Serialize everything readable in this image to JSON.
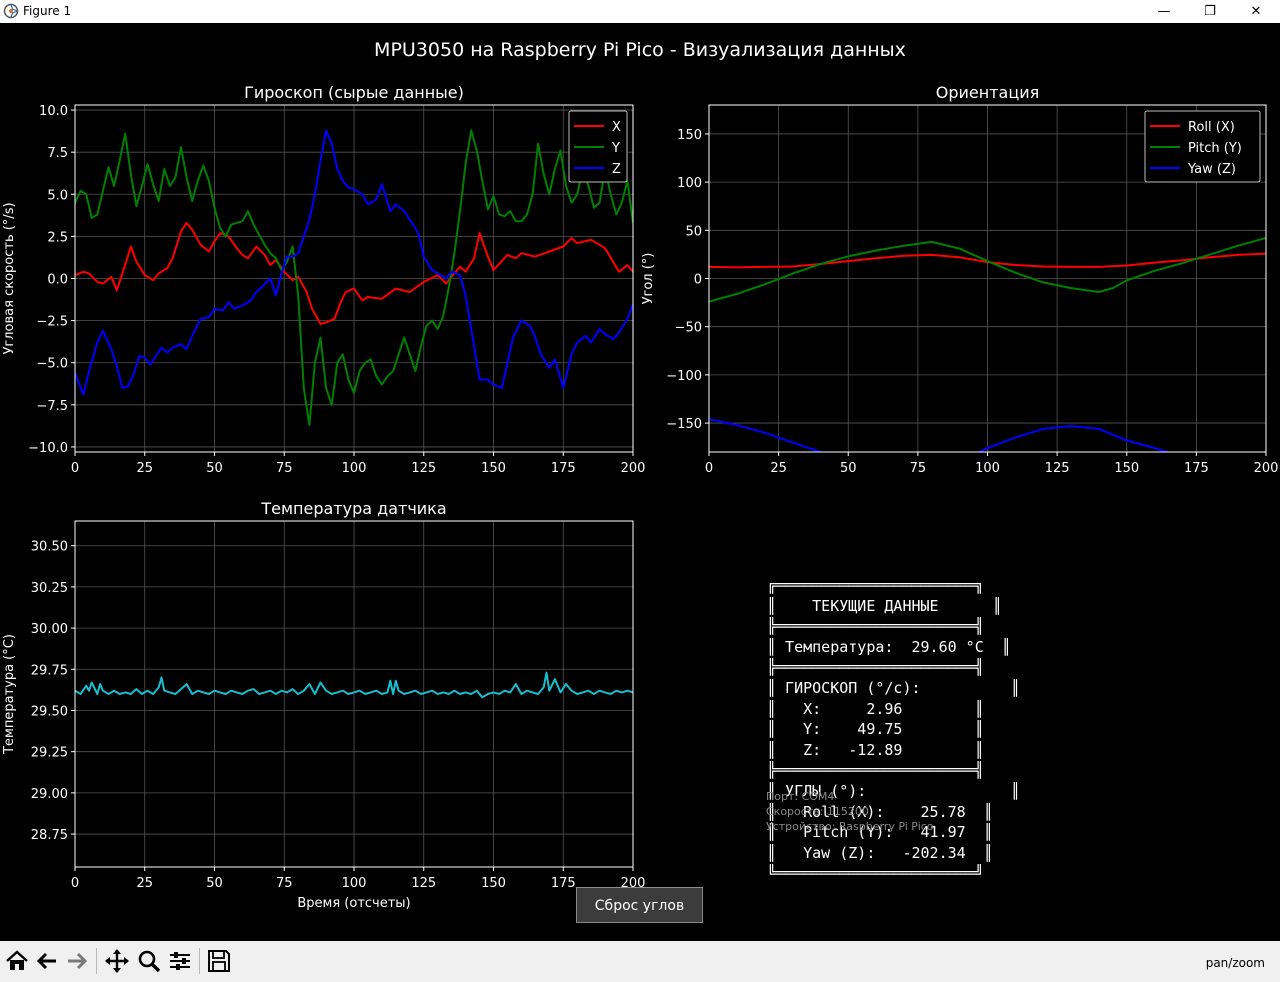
{
  "window": {
    "title": "Figure 1",
    "minimize_glyph": "—",
    "maximize_glyph": "❐",
    "close_glyph": "✕"
  },
  "figure": {
    "suptitle": "MPU3050 на Raspberry Pi Pico - Визуализация данных",
    "background": "#000000"
  },
  "chart_data": [
    {
      "id": "gyro",
      "type": "line",
      "title": "Гироскоп (сырые данные)",
      "xlabel": "",
      "ylabel": "Угловая скорость (°/s)",
      "xlim": [
        0,
        200
      ],
      "ylim": [
        -10.3,
        10.3
      ],
      "xticks": [
        0,
        25,
        50,
        75,
        100,
        125,
        150,
        175,
        200
      ],
      "yticks": [
        -10.0,
        -7.5,
        -5.0,
        -2.5,
        0.0,
        2.5,
        5.0,
        7.5,
        10.0
      ],
      "ytick_labels": [
        "−10.0",
        "−7.5",
        "−5.0",
        "−2.5",
        "0.0",
        "2.5",
        "5.0",
        "7.5",
        "10.0"
      ],
      "grid": true,
      "legend": "top-right",
      "series": [
        {
          "name": "X",
          "color": "#ff0000",
          "x": [
            0,
            3,
            5,
            8,
            10,
            13,
            15,
            18,
            20,
            22,
            25,
            28,
            30,
            33,
            35,
            38,
            40,
            42,
            45,
            48,
            50,
            52,
            55,
            58,
            60,
            62,
            65,
            68,
            70,
            72,
            75,
            78,
            80,
            83,
            85,
            88,
            90,
            93,
            95,
            97,
            100,
            103,
            105,
            110,
            115,
            120,
            125,
            130,
            133,
            135,
            138,
            140,
            143,
            145,
            148,
            150,
            155,
            158,
            160,
            165,
            170,
            175,
            178,
            180,
            185,
            190,
            195,
            198,
            200
          ],
          "y": [
            0.2,
            0.4,
            0.3,
            -0.2,
            -0.3,
            0.1,
            -0.7,
            0.8,
            1.9,
            1.0,
            0.2,
            -0.1,
            0.3,
            0.6,
            1.2,
            2.8,
            3.3,
            2.9,
            2.0,
            1.6,
            2.2,
            2.7,
            2.5,
            1.8,
            1.4,
            1.2,
            1.9,
            1.4,
            0.8,
            1.1,
            0.4,
            -0.1,
            0.1,
            -0.8,
            -1.8,
            -2.7,
            -2.6,
            -2.4,
            -1.5,
            -0.8,
            -0.6,
            -1.3,
            -1.1,
            -1.2,
            -0.6,
            -0.8,
            -0.2,
            0.2,
            -0.3,
            0.1,
            0.7,
            0.4,
            1.2,
            2.7,
            1.3,
            0.5,
            1.4,
            1.2,
            1.5,
            1.3,
            1.6,
            1.9,
            2.4,
            2.1,
            2.3,
            1.8,
            0.4,
            0.8,
            0.4
          ]
        },
        {
          "name": "Y",
          "color": "#008000",
          "x": [
            0,
            2,
            4,
            6,
            8,
            10,
            12,
            14,
            16,
            18,
            20,
            22,
            24,
            26,
            28,
            30,
            32,
            34,
            36,
            38,
            40,
            42,
            44,
            46,
            48,
            50,
            52,
            54,
            56,
            58,
            60,
            62,
            64,
            66,
            68,
            70,
            72,
            74,
            76,
            78,
            80,
            82,
            84,
            86,
            88,
            90,
            92,
            94,
            96,
            98,
            100,
            102,
            104,
            106,
            108,
            110,
            112,
            114,
            116,
            118,
            120,
            122,
            124,
            126,
            128,
            130,
            132,
            134,
            136,
            138,
            140,
            142,
            144,
            146,
            148,
            150,
            152,
            154,
            156,
            158,
            160,
            162,
            164,
            166,
            168,
            170,
            172,
            174,
            176,
            178,
            180,
            182,
            184,
            186,
            188,
            190,
            192,
            194,
            196,
            198,
            200
          ],
          "y": [
            4.5,
            5.2,
            5.0,
            3.6,
            3.8,
            5.2,
            6.6,
            5.5,
            7.0,
            8.6,
            6.2,
            4.3,
            5.5,
            6.8,
            5.6,
            4.6,
            6.5,
            5.5,
            6.0,
            7.8,
            6.0,
            4.6,
            5.8,
            6.7,
            5.8,
            4.2,
            3.0,
            2.5,
            3.2,
            3.3,
            3.4,
            4.0,
            3.2,
            2.6,
            2.0,
            1.5,
            1.2,
            0.5,
            1.0,
            1.9,
            -1.0,
            -6.5,
            -8.7,
            -5.0,
            -3.5,
            -6.5,
            -7.5,
            -5.0,
            -4.5,
            -6.0,
            -6.8,
            -5.5,
            -5.0,
            -4.8,
            -5.8,
            -6.3,
            -5.8,
            -5.5,
            -4.5,
            -3.5,
            -4.5,
            -5.5,
            -4.0,
            -2.8,
            -2.5,
            -3.0,
            -2.2,
            -0.5,
            1.5,
            4.0,
            6.8,
            8.8,
            7.6,
            5.8,
            4.1,
            4.9,
            3.8,
            3.7,
            4.0,
            3.4,
            3.4,
            3.8,
            5.0,
            8.0,
            6.2,
            5.0,
            6.5,
            7.6,
            5.5,
            4.5,
            5.0,
            6.5,
            5.5,
            4.2,
            4.5,
            6.5,
            5.0,
            3.8,
            4.5,
            5.8,
            3.3
          ]
        },
        {
          "name": "Z",
          "color": "#0000ff",
          "x": [
            0,
            3,
            5,
            8,
            10,
            13,
            15,
            17,
            19,
            21,
            23,
            25,
            27,
            29,
            31,
            33,
            35,
            38,
            40,
            42,
            45,
            48,
            50,
            53,
            55,
            57,
            60,
            63,
            65,
            67,
            70,
            72,
            74,
            76,
            78,
            80,
            82,
            84,
            86,
            88,
            90,
            92,
            94,
            96,
            98,
            100,
            103,
            105,
            108,
            110,
            113,
            115,
            118,
            120,
            123,
            125,
            128,
            130,
            133,
            135,
            138,
            140,
            143,
            145,
            148,
            150,
            153,
            155,
            157,
            160,
            163,
            165,
            167,
            170,
            172,
            175,
            178,
            180,
            183,
            185,
            188,
            190,
            193,
            195,
            198,
            200
          ],
          "y": [
            -5.6,
            -6.9,
            -5.5,
            -3.8,
            -3.1,
            -4.2,
            -5.2,
            -6.5,
            -6.4,
            -5.7,
            -4.6,
            -4.7,
            -5.1,
            -4.6,
            -4.1,
            -4.4,
            -4.1,
            -3.9,
            -4.2,
            -3.4,
            -2.4,
            -2.3,
            -1.8,
            -1.9,
            -1.4,
            -1.8,
            -1.6,
            -1.3,
            -0.8,
            -0.5,
            0.0,
            -1.0,
            0.3,
            1.3,
            1.3,
            1.5,
            2.5,
            3.5,
            5.0,
            7.0,
            8.8,
            8.0,
            6.5,
            5.8,
            5.4,
            5.3,
            5.0,
            4.4,
            4.7,
            5.6,
            4.0,
            4.4,
            4.0,
            3.5,
            2.7,
            1.3,
            0.5,
            0.3,
            0.0,
            0.4,
            0.2,
            -1.0,
            -4.0,
            -6.0,
            -6.0,
            -6.3,
            -6.5,
            -5.0,
            -3.5,
            -2.5,
            -2.8,
            -3.5,
            -4.5,
            -5.3,
            -4.8,
            -6.5,
            -4.5,
            -3.8,
            -3.4,
            -3.8,
            -3.0,
            -3.3,
            -3.6,
            -3.2,
            -2.4,
            -1.5
          ]
        }
      ]
    },
    {
      "id": "orientation",
      "type": "line",
      "title": "Ориентация",
      "xlabel": "",
      "ylabel": "Угол (°)",
      "xlim": [
        0,
        200
      ],
      "ylim": [
        -180,
        180
      ],
      "xticks": [
        0,
        25,
        50,
        75,
        100,
        125,
        150,
        175,
        200
      ],
      "yticks": [
        -150,
        -100,
        -50,
        0,
        50,
        100,
        150
      ],
      "ytick_labels": [
        "−150",
        "−100",
        "−50",
        "0",
        "50",
        "100",
        "150"
      ],
      "grid": true,
      "legend": "top-right",
      "series": [
        {
          "name": "Roll (X)",
          "color": "#ff0000",
          "x": [
            0,
            10,
            20,
            30,
            40,
            50,
            60,
            70,
            80,
            90,
            100,
            110,
            120,
            130,
            140,
            150,
            160,
            170,
            180,
            190,
            200
          ],
          "y": [
            12,
            11.5,
            12,
            12.5,
            15,
            18,
            21,
            23.5,
            24.5,
            22,
            17,
            14,
            12.5,
            12,
            12,
            13.5,
            16.5,
            19,
            22,
            24.5,
            25.8
          ]
        },
        {
          "name": "Pitch (Y)",
          "color": "#008000",
          "x": [
            0,
            10,
            20,
            30,
            40,
            50,
            60,
            70,
            80,
            90,
            100,
            110,
            120,
            130,
            140,
            145,
            150,
            160,
            170,
            180,
            190,
            200
          ],
          "y": [
            -24,
            -16,
            -6,
            5,
            15,
            23,
            29,
            34,
            38,
            31,
            18,
            6,
            -4,
            -10,
            -14,
            -10,
            -2,
            8,
            16,
            25,
            34,
            42
          ]
        },
        {
          "name": "Yaw (Z)",
          "color": "#0000ff",
          "x": [
            0,
            10,
            20,
            30,
            40,
            50,
            60,
            70,
            80,
            90,
            100,
            110,
            120,
            130,
            140,
            150,
            160,
            170,
            180,
            190,
            200
          ],
          "y": [
            -146,
            -152,
            -160,
            -170,
            -180,
            -195,
            -205,
            -210,
            -205,
            -190,
            -176,
            -165,
            -156,
            -153,
            -156,
            -168,
            -176,
            -185,
            -195,
            -202,
            -202
          ]
        }
      ]
    },
    {
      "id": "temperature",
      "type": "line",
      "title": "Температура датчика",
      "xlabel": "Время (отсчеты)",
      "ylabel": "Температура (°C)",
      "xlim": [
        0,
        200
      ],
      "ylim": [
        28.55,
        30.65
      ],
      "xticks": [
        0,
        25,
        50,
        75,
        100,
        125,
        150,
        175,
        200
      ],
      "yticks": [
        28.75,
        29.0,
        29.25,
        29.5,
        29.75,
        30.0,
        30.25,
        30.5
      ],
      "ytick_labels": [
        "28.75",
        "29.00",
        "29.25",
        "29.50",
        "29.75",
        "30.00",
        "30.25",
        "30.50"
      ],
      "grid": true,
      "series": [
        {
          "name": "",
          "color": "#17becf",
          "x": [
            0,
            2,
            4,
            5,
            6,
            8,
            9,
            10,
            12,
            14,
            16,
            18,
            20,
            22,
            24,
            26,
            28,
            30,
            31,
            32,
            34,
            36,
            38,
            40,
            42,
            44,
            46,
            48,
            50,
            52,
            54,
            56,
            58,
            60,
            62,
            64,
            66,
            68,
            70,
            72,
            74,
            76,
            78,
            80,
            82,
            84,
            86,
            88,
            90,
            92,
            94,
            96,
            98,
            100,
            102,
            104,
            106,
            108,
            110,
            112,
            113,
            114,
            115,
            116,
            118,
            120,
            122,
            124,
            126,
            128,
            130,
            132,
            134,
            136,
            138,
            140,
            142,
            144,
            146,
            148,
            150,
            152,
            154,
            156,
            158,
            160,
            162,
            164,
            166,
            168,
            169,
            170,
            172,
            174,
            176,
            178,
            180,
            182,
            184,
            186,
            188,
            190,
            192,
            194,
            196,
            198,
            200
          ],
          "y": [
            29.62,
            29.6,
            29.65,
            29.62,
            29.67,
            29.6,
            29.66,
            29.62,
            29.6,
            29.62,
            29.6,
            29.61,
            29.6,
            29.63,
            29.6,
            29.62,
            29.6,
            29.64,
            29.7,
            29.62,
            29.61,
            29.6,
            29.63,
            29.66,
            29.6,
            29.62,
            29.61,
            29.6,
            29.62,
            29.61,
            29.6,
            29.62,
            29.61,
            29.6,
            29.62,
            29.63,
            29.6,
            29.61,
            29.62,
            29.6,
            29.62,
            29.61,
            29.63,
            29.6,
            29.62,
            29.66,
            29.6,
            29.67,
            29.62,
            29.6,
            29.61,
            29.62,
            29.6,
            29.61,
            29.62,
            29.6,
            29.61,
            29.62,
            29.6,
            29.61,
            29.68,
            29.6,
            29.68,
            29.62,
            29.6,
            29.61,
            29.62,
            29.6,
            29.61,
            29.62,
            29.6,
            29.61,
            29.6,
            29.62,
            29.6,
            29.61,
            29.6,
            29.62,
            29.58,
            29.6,
            29.61,
            29.6,
            29.62,
            29.61,
            29.66,
            29.6,
            29.62,
            29.61,
            29.6,
            29.64,
            29.73,
            29.62,
            29.69,
            29.61,
            29.66,
            29.62,
            29.6,
            29.61,
            29.62,
            29.6,
            29.62,
            29.61,
            29.6,
            29.62,
            29.61,
            29.62,
            29.61
          ]
        }
      ]
    }
  ],
  "info_panel": {
    "lines": [
      "╔══════════════════════╗",
      "║    ТЕКУЩИЕ ДАННЫЕ      ║",
      "╠══════════════════════╣",
      "║ Температура:  29.60 °C  ║",
      "╠══════════════════════╣",
      "║ ГИРОСКОП (°/с):          ║",
      "║   X:     2.96        ║",
      "║   Y:    49.75        ║",
      "║   Z:   -12.89        ║",
      "╠══════════════════════╣",
      "║ УГЛЫ (°):                ║",
      "║   Roll (X):    25.78  ║",
      "║   Pitch (Y):   41.97  ║",
      "║   Yaw (Z):   -202.34  ║",
      "╚══════════════════════╝"
    ],
    "ghost_lines": [
      "Порт: COM4",
      "Скорость: 115200",
      "Устройство: Raspberry Pi Pico"
    ]
  },
  "reset_button": {
    "label": "Сброс углов"
  },
  "toolbar": {
    "buttons": [
      "home-icon",
      "back-icon",
      "forward-icon",
      "move-icon",
      "zoom-icon",
      "configure-icon",
      "save-icon"
    ],
    "mode": "pan/zoom"
  }
}
